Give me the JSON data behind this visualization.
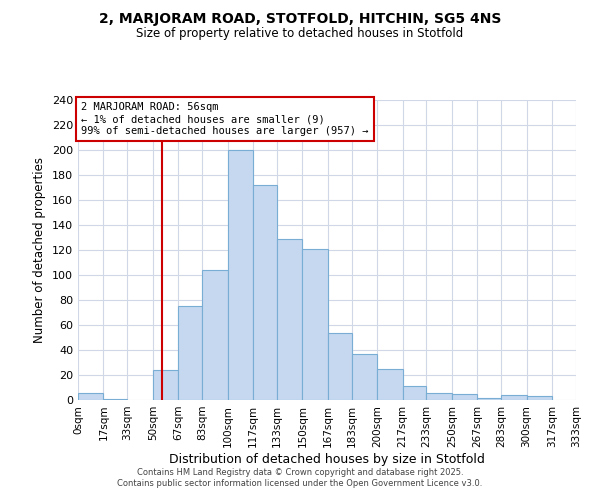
{
  "title": "2, MARJORAM ROAD, STOTFOLD, HITCHIN, SG5 4NS",
  "subtitle": "Size of property relative to detached houses in Stotfold",
  "xlabel": "Distribution of detached houses by size in Stotfold",
  "ylabel": "Number of detached properties",
  "bar_color": "#c5d8f0",
  "bar_edge_color": "#7aadd4",
  "bins": [
    0,
    17,
    33,
    50,
    67,
    83,
    100,
    117,
    133,
    150,
    167,
    183,
    200,
    217,
    233,
    250,
    267,
    283,
    300,
    317,
    333
  ],
  "counts": [
    6,
    1,
    0,
    24,
    75,
    104,
    200,
    172,
    129,
    121,
    54,
    37,
    25,
    11,
    6,
    5,
    2,
    4,
    3,
    0
  ],
  "tick_labels": [
    "0sqm",
    "17sqm",
    "33sqm",
    "50sqm",
    "67sqm",
    "83sqm",
    "100sqm",
    "117sqm",
    "133sqm",
    "150sqm",
    "167sqm",
    "183sqm",
    "200sqm",
    "217sqm",
    "233sqm",
    "250sqm",
    "267sqm",
    "283sqm",
    "300sqm",
    "317sqm",
    "333sqm"
  ],
  "ylim": [
    0,
    240
  ],
  "yticks": [
    0,
    20,
    40,
    60,
    80,
    100,
    120,
    140,
    160,
    180,
    200,
    220,
    240
  ],
  "vline_x": 56,
  "vline_color": "#cc0000",
  "annotation_text": "2 MARJORAM ROAD: 56sqm\n← 1% of detached houses are smaller (9)\n99% of semi-detached houses are larger (957) →",
  "annotation_box_color": "#ffffff",
  "annotation_box_edge": "#cc0000",
  "footer_line1": "Contains HM Land Registry data © Crown copyright and database right 2025.",
  "footer_line2": "Contains public sector information licensed under the Open Government Licence v3.0.",
  "background_color": "#ffffff",
  "grid_color": "#d0d8e8"
}
